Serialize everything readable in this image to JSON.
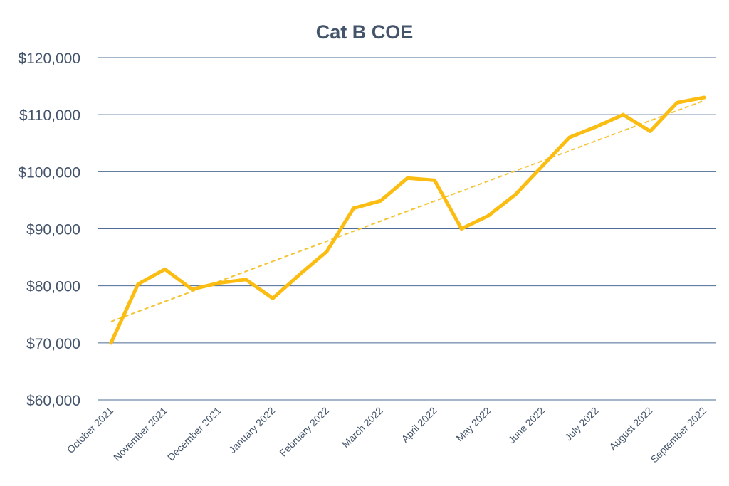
{
  "chart_data": {
    "type": "line",
    "title": "Cat B COE",
    "xlabel": "",
    "ylabel": "",
    "categories": [
      "October 2021",
      "November 2021",
      "December 2021",
      "January 2022",
      "February 2022",
      "March 2022",
      "April 2022",
      "May 2022",
      "June 2022",
      "July 2022",
      "August 2022",
      "September 2022"
    ],
    "x": [
      "October 2021",
      "",
      "November 2021",
      "",
      "December 2021",
      "",
      "January 2022",
      "",
      "February 2022",
      "",
      "March 2022",
      "",
      "April 2022",
      "",
      "May 2022",
      "",
      "June 2022",
      "",
      "July 2022",
      "",
      "August 2022",
      "",
      "September 2022"
    ],
    "series": [
      {
        "values": [
          70000,
          80300,
          82900,
          79400,
          80500,
          81100,
          77800,
          82000,
          86000,
          93600,
          94900,
          98900,
          98500,
          90000,
          92300,
          96000,
          101000,
          106000,
          107900,
          110000,
          107100,
          112100,
          113000
        ]
      }
    ],
    "trendline": {
      "type": "linear",
      "style": "dashed"
    },
    "ylim": [
      60000,
      120000
    ],
    "yticks": [
      "$60,000",
      "$70,000",
      "$80,000",
      "$90,000",
      "$100,000",
      "$110,000",
      "$120,000"
    ],
    "ytick_values": [
      60000,
      70000,
      80000,
      90000,
      100000,
      110000,
      120000
    ],
    "grid": "horizontal",
    "legend": "none",
    "colors": {
      "line": "#fbbd12",
      "trend": "#f5c433",
      "grid": "#4e6c95",
      "text": "#44546a"
    }
  }
}
